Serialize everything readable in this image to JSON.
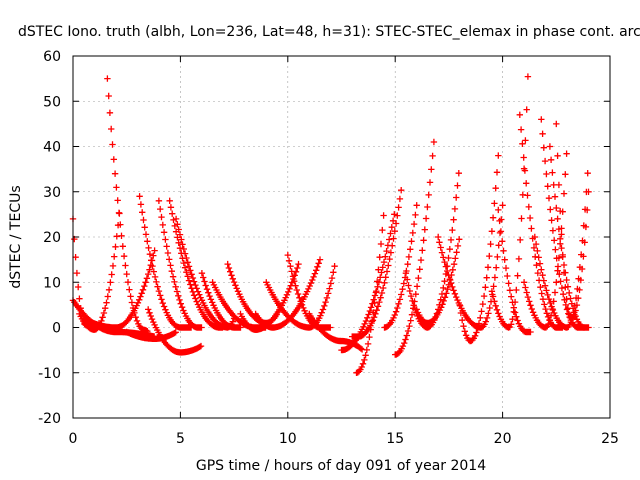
{
  "chart_data": {
    "type": "scatter",
    "title": "dSTEC Iono. truth (albh, Lon=236, Lat=48, h=31): STEC-STEC_elemax in phase cont. arc",
    "xlabel": "GPS time / hours of day 091 of year 2014",
    "ylabel": "dSTEC  / TECUs",
    "xlim": [
      0,
      25
    ],
    "ylim": [
      -20,
      60
    ],
    "xticks": [
      0,
      5,
      10,
      15,
      20,
      25
    ],
    "yticks": [
      -20,
      -10,
      0,
      10,
      20,
      30,
      40,
      50,
      60
    ],
    "grid": true,
    "marker": "+",
    "color": "#ff0000",
    "arcs": [
      {
        "t0": 0.0,
        "t1": 1.0,
        "tmin": 0.6,
        "vmin": 0.5,
        "v0": 24,
        "v1": 0
      },
      {
        "t0": 0.0,
        "t1": 3.8,
        "tmin": 2.0,
        "vmin": -1.0,
        "v0": 6,
        "v1": -2
      },
      {
        "t0": 0.3,
        "t1": 2.2,
        "tmin": 1.0,
        "vmin": -0.5,
        "v0": 3,
        "v1": 27
      },
      {
        "t0": 1.6,
        "t1": 3.5,
        "tmin": 3.3,
        "vmin": -0.5,
        "v0": 55,
        "v1": -1
      },
      {
        "t0": 0.5,
        "t1": 3.8,
        "tmin": 2.0,
        "vmin": 0.0,
        "v0": 2,
        "v1": 17
      },
      {
        "t0": 3.1,
        "t1": 5.5,
        "tmin": 5.0,
        "vmin": 0.0,
        "v0": 29,
        "v1": 0
      },
      {
        "t0": 2.5,
        "t1": 4.8,
        "tmin": 3.8,
        "vmin": -2.5,
        "v0": -1,
        "v1": -1
      },
      {
        "t0": 4.0,
        "t1": 6.0,
        "tmin": 5.8,
        "vmin": 0.0,
        "v0": 28,
        "v1": 0
      },
      {
        "t0": 3.5,
        "t1": 6.0,
        "tmin": 5.0,
        "vmin": -5.5,
        "v0": 4,
        "v1": -4
      },
      {
        "t0": 4.5,
        "t1": 7.0,
        "tmin": 6.8,
        "vmin": 0.0,
        "v0": 28,
        "v1": 0
      },
      {
        "t0": 4.8,
        "t1": 7.5,
        "tmin": 7.2,
        "vmin": 0.0,
        "v0": 24,
        "v1": 2
      },
      {
        "t0": 6.0,
        "t1": 7.8,
        "tmin": 7.5,
        "vmin": 0.0,
        "v0": 12,
        "v1": 0
      },
      {
        "t0": 6.5,
        "t1": 9.0,
        "tmin": 8.5,
        "vmin": 0.0,
        "v0": 10,
        "v1": 0
      },
      {
        "t0": 7.2,
        "t1": 9.5,
        "tmin": 9.0,
        "vmin": 1.0,
        "v0": 14,
        "v1": 3
      },
      {
        "t0": 7.8,
        "t1": 10.5,
        "tmin": 8.5,
        "vmin": -0.5,
        "v0": 3,
        "v1": 14
      },
      {
        "t0": 8.5,
        "t1": 11.5,
        "tmin": 9.3,
        "vmin": 0.0,
        "v0": 3,
        "v1": 15
      },
      {
        "t0": 9.0,
        "t1": 12.2,
        "tmin": 11.0,
        "vmin": 0.0,
        "v0": 10,
        "v1": 14
      },
      {
        "t0": 10.0,
        "t1": 12.0,
        "tmin": 11.5,
        "vmin": 0.0,
        "v0": 16,
        "v1": 0
      },
      {
        "t0": 11.0,
        "t1": 13.5,
        "tmin": 12.5,
        "vmin": -3.0,
        "v0": 3,
        "v1": -5
      },
      {
        "t0": 13.2,
        "t1": 14.5,
        "tmin": 13.2,
        "vmin": -10.0,
        "v0": -10,
        "v1": 27
      },
      {
        "t0": 12.5,
        "t1": 15.0,
        "tmin": 12.5,
        "vmin": -5.0,
        "v0": -5,
        "v1": 26
      },
      {
        "t0": 13.0,
        "t1": 15.3,
        "tmin": 13.3,
        "vmin": -2.0,
        "v0": -2,
        "v1": 31
      },
      {
        "t0": 14.5,
        "t1": 16.0,
        "tmin": 14.5,
        "vmin": 0.0,
        "v0": 0,
        "v1": 27
      },
      {
        "t0": 15.0,
        "t1": 16.8,
        "tmin": 15.0,
        "vmin": -6.0,
        "v0": -6,
        "v1": 41
      },
      {
        "t0": 15.5,
        "t1": 18.0,
        "tmin": 16.5,
        "vmin": 0.0,
        "v0": 12,
        "v1": 36
      },
      {
        "t0": 16.0,
        "t1": 18.0,
        "tmin": 16.5,
        "vmin": 1.0,
        "v0": 4,
        "v1": 20
      },
      {
        "t0": 17.0,
        "t1": 20.0,
        "tmin": 19.0,
        "vmin": 0.0,
        "v0": 20,
        "v1": 27
      },
      {
        "t0": 18.0,
        "t1": 19.8,
        "tmin": 18.5,
        "vmin": -3.0,
        "v0": 5,
        "v1": 38
      },
      {
        "t0": 19.8,
        "t1": 21.3,
        "tmin": 21.1,
        "vmin": -1.0,
        "v0": 26,
        "v1": -1
      },
      {
        "t0": 19.5,
        "t1": 21.2,
        "tmin": 20.3,
        "vmin": 0.0,
        "v0": 8,
        "v1": 58
      },
      {
        "t0": 20.8,
        "t1": 22.8,
        "tmin": 22.5,
        "vmin": 0.0,
        "v0": 47,
        "v1": 0
      },
      {
        "t0": 21.0,
        "t1": 23.0,
        "tmin": 22.0,
        "vmin": 0.0,
        "v0": 10,
        "v1": 40
      },
      {
        "t0": 21.8,
        "t1": 23.8,
        "tmin": 23.5,
        "vmin": 0.0,
        "v0": 46,
        "v1": 0
      },
      {
        "t0": 22.2,
        "t1": 24.0,
        "tmin": 23.8,
        "vmin": 0.0,
        "v0": 40,
        "v1": 0
      },
      {
        "t0": 22.5,
        "t1": 24.0,
        "tmin": 23.2,
        "vmin": 2.0,
        "v0": 45,
        "v1": 30
      },
      {
        "t0": 21.5,
        "t1": 24.0,
        "tmin": 23.0,
        "vmin": 0.0,
        "v0": 20,
        "v1": 37
      }
    ]
  }
}
